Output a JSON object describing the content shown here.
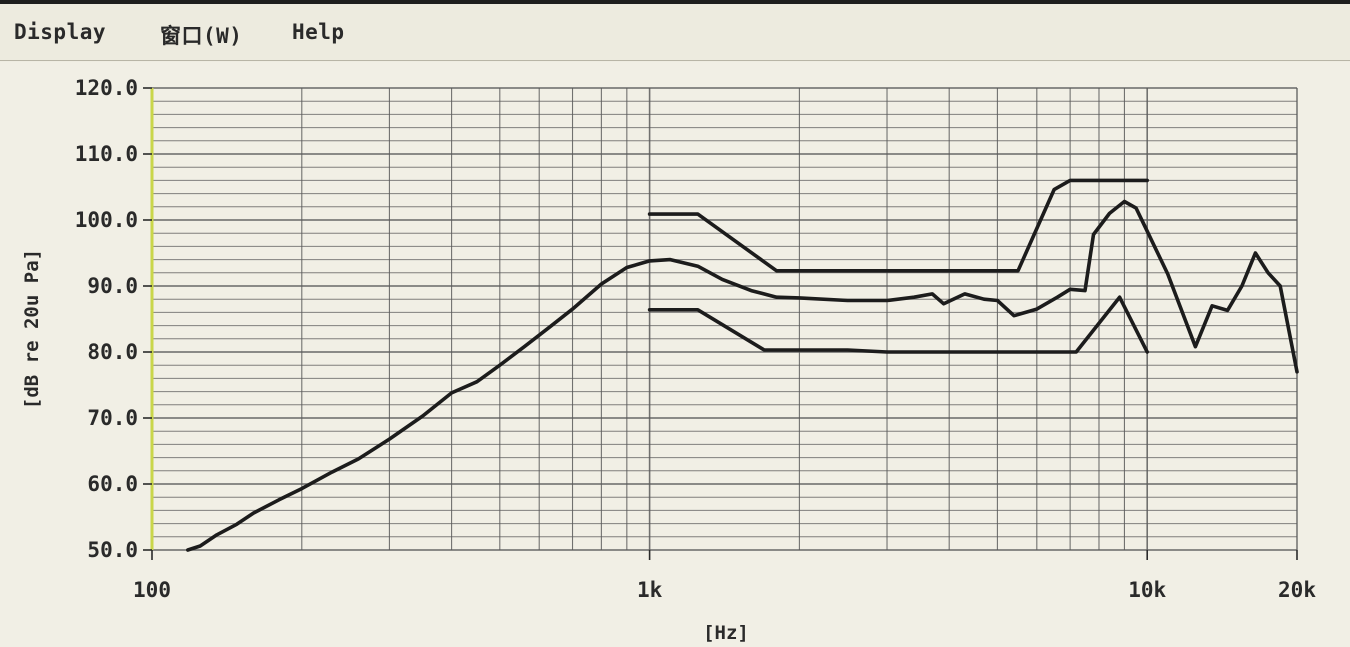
{
  "menu": {
    "items": [
      "Display",
      "窗口(W)",
      "Help"
    ]
  },
  "colors": {
    "background": "#f1efe5",
    "grid": "#5a5a5a",
    "curve": "#1c1c1c",
    "left_axis_accent": "#c9d64a"
  },
  "chart_data": {
    "type": "line",
    "x_scale": "log",
    "xlim": [
      100,
      20000
    ],
    "ylim": [
      50,
      120
    ],
    "xlabel": "[Hz]",
    "ylabel": "[dB re 20u Pa]",
    "x_ticks": [
      {
        "value": 100,
        "label": "100"
      },
      {
        "value": 1000,
        "label": "1k"
      },
      {
        "value": 10000,
        "label": "10k"
      },
      {
        "value": 20000,
        "label": "20k"
      }
    ],
    "y_ticks": [
      {
        "value": 50,
        "label": "50.0"
      },
      {
        "value": 60,
        "label": "60.0"
      },
      {
        "value": 70,
        "label": "70.0"
      },
      {
        "value": 80,
        "label": "80.0"
      },
      {
        "value": 90,
        "label": "90.0"
      },
      {
        "value": 100,
        "label": "100.0"
      },
      {
        "value": 110,
        "label": "110.0"
      },
      {
        "value": 120,
        "label": "120.0"
      }
    ],
    "grid": true,
    "series": [
      {
        "points": [
          [
            118,
            50
          ],
          [
            125,
            50.6
          ],
          [
            135,
            52.3
          ],
          [
            148,
            53.9
          ],
          [
            160,
            55.6
          ],
          [
            180,
            57.6
          ],
          [
            200,
            59.3
          ],
          [
            230,
            61.8
          ],
          [
            260,
            63.8
          ],
          [
            300,
            66.8
          ],
          [
            350,
            70.3
          ],
          [
            400,
            73.8
          ],
          [
            450,
            75.5
          ],
          [
            500,
            78.0
          ],
          [
            560,
            80.8
          ],
          [
            630,
            83.8
          ],
          [
            700,
            86.5
          ],
          [
            800,
            90.3
          ],
          [
            900,
            92.8
          ],
          [
            1000,
            93.8
          ],
          [
            1100,
            94.0
          ],
          [
            1250,
            93.0
          ],
          [
            1400,
            91.0
          ],
          [
            1600,
            89.3
          ],
          [
            1800,
            88.3
          ],
          [
            2000,
            88.2
          ],
          [
            2500,
            87.8
          ],
          [
            3000,
            87.8
          ],
          [
            3400,
            88.3
          ],
          [
            3700,
            88.8
          ],
          [
            3900,
            87.3
          ],
          [
            4300,
            88.8
          ],
          [
            4700,
            88.0
          ],
          [
            5000,
            87.8
          ],
          [
            5400,
            85.5
          ],
          [
            6000,
            86.5
          ],
          [
            6600,
            88.3
          ],
          [
            7000,
            89.5
          ],
          [
            7500,
            89.3
          ],
          [
            7800,
            97.8
          ],
          [
            8400,
            101.0
          ],
          [
            9000,
            102.8
          ],
          [
            9500,
            101.8
          ],
          [
            10000,
            98.3
          ],
          [
            11000,
            91.8
          ],
          [
            12500,
            80.8
          ],
          [
            13500,
            87.0
          ],
          [
            14500,
            86.3
          ],
          [
            15500,
            90.0
          ],
          [
            16500,
            95.0
          ],
          [
            17500,
            92.0
          ],
          [
            18500,
            90.0
          ],
          [
            20000,
            77.0
          ]
        ]
      },
      {
        "points": [
          [
            1000,
            100.9
          ],
          [
            1250,
            100.9
          ],
          [
            1800,
            92.3
          ],
          [
            2500,
            92.3
          ],
          [
            4000,
            92.3
          ],
          [
            5500,
            92.3
          ],
          [
            6500,
            104.6
          ],
          [
            7000,
            106.0
          ],
          [
            10000,
            106.0
          ]
        ]
      },
      {
        "points": [
          [
            1000,
            86.4
          ],
          [
            1250,
            86.4
          ],
          [
            1700,
            80.3
          ],
          [
            2500,
            80.3
          ],
          [
            3000,
            80.0
          ],
          [
            5000,
            80.0
          ],
          [
            7200,
            80.0
          ],
          [
            8800,
            88.3
          ],
          [
            10000,
            80.0
          ]
        ]
      }
    ]
  }
}
